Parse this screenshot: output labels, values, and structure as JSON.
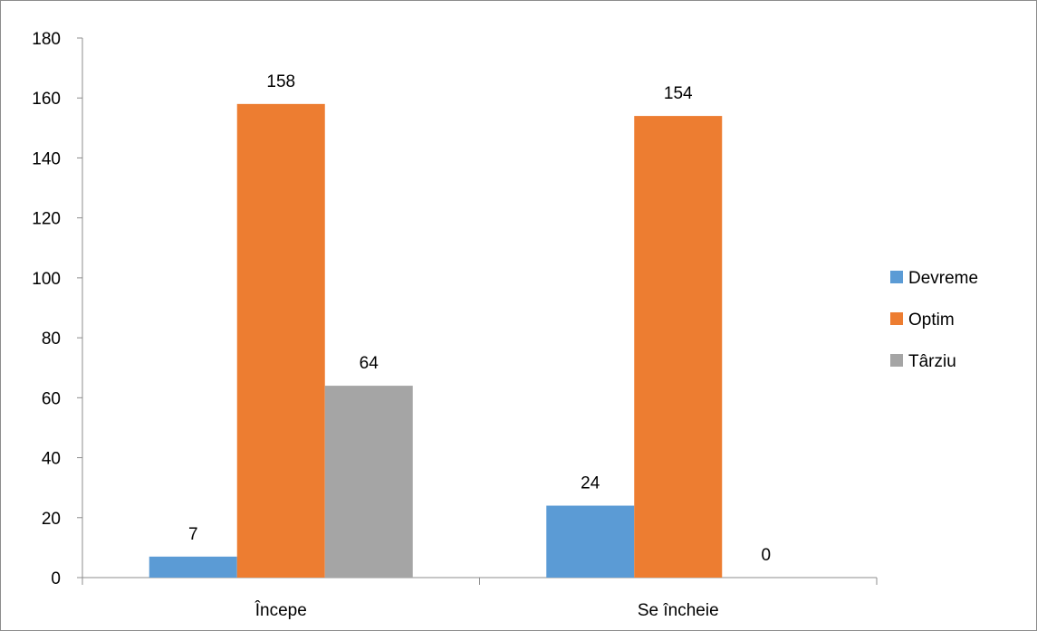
{
  "chart_data": {
    "type": "bar",
    "categories": [
      "Începe",
      "Se încheie"
    ],
    "series": [
      {
        "name": "Devreme",
        "values": [
          7,
          24
        ],
        "color": "#5b9bd5"
      },
      {
        "name": "Optim",
        "values": [
          158,
          154
        ],
        "color": "#ed7d31"
      },
      {
        "name": "Târziu",
        "values": [
          64,
          0
        ],
        "color": "#a5a5a5"
      }
    ],
    "ylim": [
      0,
      180
    ],
    "yticks": [
      "0",
      "20",
      "40",
      "60",
      "80",
      "100",
      "120",
      "140",
      "160",
      "180"
    ],
    "data_labels": [
      [
        "7",
        "24"
      ],
      [
        "158",
        "154"
      ],
      [
        "64",
        "0"
      ]
    ],
    "grid": false,
    "legend_position": "right"
  }
}
